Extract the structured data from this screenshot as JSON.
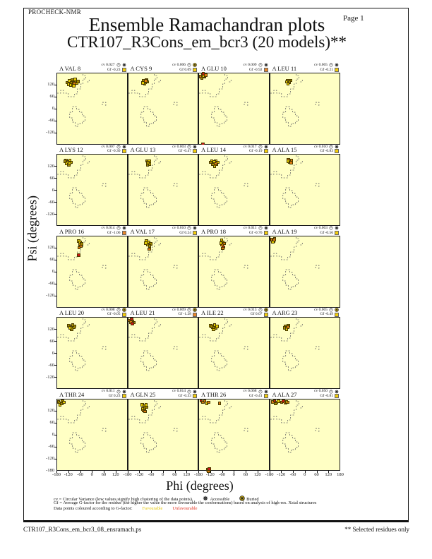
{
  "header": {
    "app_name": "PROCHECK-NMR",
    "page_label": "Page  1",
    "title_line1": "Ensemble Ramachandran plots",
    "title_line2": "CTR107_R3Cons_em_bcr3 (20 models)**"
  },
  "axes": {
    "x_label": "Phi (degrees)",
    "y_label": "Psi (degrees)",
    "x_ticks": [
      -180,
      -120,
      -60,
      0,
      60,
      120
    ],
    "x_end_tick": 180,
    "y_ticks": [
      120,
      60,
      0,
      -60,
      -120
    ],
    "y_bottom_tick": -180,
    "phi_range": [
      -180,
      180
    ],
    "psi_range": [
      -180,
      180
    ]
  },
  "legend": {
    "cv_text": "cv = Circular Variance (low values signify high clustering of the data points).",
    "accessible_label": "Accessible",
    "buried_label": "Buried",
    "gf_text": "Gf = Average G-factor for the residue (the higher the value the more favourable the conformations) based on analysis of high-res. Xstal structures",
    "points_text": "Data points coloured according to G-factor:",
    "favourable_label": "Favourable",
    "unfavourable_label": "Unfavourable"
  },
  "footer": {
    "left_text": "CTR107_R3Cons_em_bcr3_08_ensramach.ps",
    "right_text": "** Selected residues only"
  },
  "colors": {
    "plot_bg": "#FFFFC4",
    "favourable_text": "#E2C400",
    "unfavourable_text": "#E03020",
    "gf_square_yellow": "#F2CC0C",
    "gf_square_orange": "#E8862A",
    "buried_icon_fill": "#F2CC0C"
  },
  "chart_data": {
    "type": "scatter",
    "grid": {
      "rows": 5,
      "cols": 4
    },
    "point_colors": {
      "y": "#E3CC00",
      "d": "#A08A00",
      "o": "#DE7A10",
      "r": "#CC1414"
    },
    "plots": [
      {
        "label": "A VAL 8",
        "cv": "cv 0.027",
        "gf": "Gf -0.23",
        "burial": "accessible",
        "gf_level": "yellow",
        "points": [
          [
            -128,
            132,
            "d"
          ],
          [
            -118,
            142,
            "y"
          ],
          [
            -108,
            130,
            "d"
          ],
          [
            -99,
            143,
            "y"
          ],
          [
            -92,
            128,
            "o"
          ],
          [
            -86,
            139,
            "d"
          ],
          [
            -79,
            131,
            "y"
          ],
          [
            -112,
            120,
            "y"
          ],
          [
            -102,
            147,
            "d"
          ],
          [
            -122,
            124,
            "y"
          ],
          [
            -75,
            137,
            "d"
          ],
          [
            -96,
            117,
            "y"
          ],
          [
            -88,
            148,
            "y"
          ]
        ]
      },
      {
        "label": "A CYS 9",
        "cv": "cv 0.006",
        "gf": "Gf 0.09",
        "burial": "buried",
        "gf_level": "yellow",
        "points": [
          [
            -101,
            141,
            "d"
          ],
          [
            -92,
            133,
            "y"
          ],
          [
            -86,
            146,
            "d"
          ],
          [
            -96,
            126,
            "y"
          ],
          [
            -81,
            136,
            "d"
          ],
          [
            -104,
            131,
            "y"
          ],
          [
            -90,
            142,
            "o"
          ]
        ]
      },
      {
        "label": "A GLU 10",
        "cv": "cv 0.009",
        "gf": "Gf -0.92",
        "burial": "accessible",
        "gf_level": "orange",
        "points": [
          [
            -171,
            163,
            "o"
          ],
          [
            -161,
            170,
            "r"
          ],
          [
            -151,
            161,
            "o"
          ],
          [
            -166,
            154,
            "d"
          ],
          [
            -156,
            166,
            "y"
          ],
          [
            -146,
            170,
            "o"
          ],
          [
            -158,
            177,
            "r"
          ],
          [
            -160,
            -177,
            "r"
          ]
        ]
      },
      {
        "label": "A LEU 11",
        "cv": "cv 0.005",
        "gf": "Gf -0.21",
        "burial": "accessible",
        "gf_level": "yellow",
        "points": [
          [
            -91,
            141,
            "d"
          ],
          [
            -83,
            133,
            "y"
          ],
          [
            -76,
            143,
            "d"
          ],
          [
            -89,
            127,
            "y"
          ],
          [
            -81,
            136,
            "d"
          ],
          [
            -96,
            136,
            "y"
          ]
        ]
      },
      {
        "label": "A LYS 12",
        "cv": "cv 0.007",
        "gf": "Gf -0.30",
        "burial": "accessible",
        "gf_level": "yellow",
        "points": [
          [
            -136,
            151,
            "y"
          ],
          [
            -126,
            143,
            "d"
          ],
          [
            -116,
            151,
            "y"
          ],
          [
            -131,
            136,
            "y"
          ],
          [
            -121,
            129,
            "d"
          ],
          [
            -111,
            141,
            "y"
          ],
          [
            -141,
            146,
            "d"
          ],
          [
            -118,
            138,
            "y"
          ]
        ]
      },
      {
        "label": "A GLU 13",
        "cv": "cv 0.003",
        "gf": "Gf -0.47",
        "burial": "accessible",
        "gf_level": "yellow",
        "points": [
          [
            -83,
            149,
            "d"
          ],
          [
            -76,
            141,
            "d"
          ],
          [
            -71,
            133,
            "y"
          ],
          [
            -81,
            129,
            "d"
          ],
          [
            -73,
            146,
            "y"
          ],
          [
            -79,
            139,
            "d"
          ]
        ]
      },
      {
        "label": "A LEU 14",
        "cv": "cv 0.017",
        "gf": "Gf -0.19",
        "burial": "accessible",
        "gf_level": "yellow",
        "points": [
          [
            -116,
            146,
            "y"
          ],
          [
            -106,
            139,
            "d"
          ],
          [
            -96,
            149,
            "y"
          ],
          [
            -91,
            131,
            "d"
          ],
          [
            -101,
            123,
            "y"
          ],
          [
            -111,
            131,
            "d"
          ],
          [
            -86,
            141,
            "y"
          ],
          [
            -121,
            141,
            "d"
          ],
          [
            -96,
            136,
            "o"
          ],
          [
            -104,
            145,
            "y"
          ]
        ]
      },
      {
        "label": "A ALA 15",
        "cv": "cv 0.010",
        "gf": "Gf -0.83",
        "burial": "accessible",
        "gf_level": "yellow",
        "points": [
          [
            -86,
            153,
            "o"
          ],
          [
            -79,
            146,
            "d"
          ],
          [
            -71,
            151,
            "o"
          ],
          [
            -81,
            141,
            "d"
          ],
          [
            -73,
            139,
            "o"
          ],
          [
            -89,
            146,
            "y"
          ]
        ]
      },
      {
        "label": "A PRO 16",
        "cv": "cv 0.014",
        "gf": "Gf -1.06",
        "burial": "accessible",
        "gf_level": "orange",
        "points": [
          [
            -71,
            156,
            "y"
          ],
          [
            -63,
            149,
            "y"
          ],
          [
            -56,
            141,
            "d"
          ],
          [
            -66,
            136,
            "o"
          ],
          [
            -59,
            129,
            "o"
          ],
          [
            -69,
            123,
            "o"
          ],
          [
            -70,
            85,
            "r"
          ]
        ]
      },
      {
        "label": "A VAL 17",
        "cv": "cv 0.010",
        "gf": "Gf 0.24",
        "burial": "accessible",
        "gf_level": "yellow",
        "points": [
          [
            -86,
            156,
            "y"
          ],
          [
            -76,
            149,
            "y"
          ],
          [
            -66,
            141,
            "d"
          ],
          [
            -81,
            139,
            "y"
          ],
          [
            -71,
            131,
            "d"
          ],
          [
            -73,
            116,
            "o"
          ],
          [
            -91,
            146,
            "y"
          ]
        ]
      },
      {
        "label": "A PRO 18",
        "cv": "cv 0.011",
        "gf": "Gf -0.76",
        "burial": "accessible",
        "gf_level": "yellow",
        "points": [
          [
            -66,
            161,
            "y"
          ],
          [
            -59,
            151,
            "d"
          ],
          [
            -53,
            143,
            "o"
          ],
          [
            -63,
            136,
            "o"
          ],
          [
            -56,
            126,
            "r"
          ],
          [
            -61,
            119,
            "o"
          ],
          [
            -69,
            146,
            "y"
          ]
        ]
      },
      {
        "label": "A ALA 19",
        "cv": "cv 0.003",
        "gf": "Gf -0.56",
        "burial": "accessible",
        "gf_level": "yellow",
        "points": [
          [
            -171,
            164,
            "o"
          ],
          [
            -163,
            157,
            "d"
          ],
          [
            -156,
            167,
            "o"
          ],
          [
            -166,
            151,
            "y"
          ],
          [
            -159,
            161,
            "o"
          ]
        ]
      },
      {
        "label": "A LEU 20",
        "cv": "cv 0.008",
        "gf": "Gf -0.05",
        "burial": "buried",
        "gf_level": "yellow",
        "points": [
          [
            -121,
            141,
            "d"
          ],
          [
            -111,
            133,
            "y"
          ],
          [
            -101,
            143,
            "d"
          ],
          [
            -96,
            131,
            "y"
          ],
          [
            -106,
            123,
            "d"
          ],
          [
            -116,
            129,
            "y"
          ],
          [
            -91,
            139,
            "d"
          ]
        ]
      },
      {
        "label": "A LEU 21",
        "cv": "cv 0.009",
        "gf": "Gf -1.28",
        "burial": "buried",
        "gf_level": "orange",
        "points": [
          [
            -173,
            167,
            "o"
          ],
          [
            -163,
            172,
            "r"
          ],
          [
            -156,
            163,
            "o"
          ],
          [
            -149,
            156,
            "d"
          ],
          [
            -166,
            158,
            "o"
          ],
          [
            -158,
            151,
            "r"
          ]
        ]
      },
      {
        "label": "A ILE 22",
        "cv": "cv 0.013",
        "gf": "Gf 0.07",
        "burial": "buried",
        "gf_level": "yellow",
        "points": [
          [
            -121,
            141,
            "y"
          ],
          [
            -111,
            133,
            "d"
          ],
          [
            -101,
            143,
            "y"
          ],
          [
            -96,
            129,
            "d"
          ],
          [
            -106,
            121,
            "y"
          ],
          [
            -116,
            136,
            "d"
          ],
          [
            -89,
            136,
            "y"
          ]
        ]
      },
      {
        "label": "A ARG 23",
        "cv": "cv 0.005",
        "gf": "Gf -0.49",
        "burial": "buried",
        "gf_level": "yellow",
        "points": [
          [
            -101,
            139,
            "d"
          ],
          [
            -93,
            131,
            "o"
          ],
          [
            -86,
            141,
            "d"
          ],
          [
            -96,
            123,
            "y"
          ],
          [
            -89,
            133,
            "o"
          ],
          [
            -106,
            129,
            "d"
          ]
        ]
      },
      {
        "label": "A THR 24",
        "cv": "cv 0.011",
        "gf": "Gf 0.23",
        "burial": "accessible",
        "gf_level": "yellow",
        "points": [
          [
            -173,
            167,
            "d"
          ],
          [
            -163,
            161,
            "y"
          ],
          [
            -153,
            171,
            "d"
          ],
          [
            -166,
            153,
            "y"
          ],
          [
            -156,
            159,
            "d"
          ],
          [
            -146,
            166,
            "y"
          ]
        ]
      },
      {
        "label": "A GLN 25",
        "cv": "cv 0.014",
        "gf": "Gf -0.33",
        "burial": "accessible",
        "gf_level": "yellow",
        "points": [
          [
            -109,
            153,
            "y"
          ],
          [
            -99,
            146,
            "d"
          ],
          [
            -89,
            153,
            "y"
          ],
          [
            -96,
            136,
            "d"
          ],
          [
            -106,
            131,
            "y"
          ],
          [
            -86,
            141,
            "d"
          ],
          [
            -101,
            123,
            "o"
          ],
          [
            -93,
            119,
            "o"
          ]
        ]
      },
      {
        "label": "A THR 26",
        "cv": "cv 0.068",
        "gf": "Gf -0.41",
        "burial": "accessible",
        "gf_level": "yellow",
        "points": [
          [
            -169,
            173,
            "r"
          ],
          [
            -161,
            166,
            "o"
          ],
          [
            -151,
            173,
            "o"
          ],
          [
            -141,
            161,
            "y"
          ],
          [
            -131,
            166,
            "o"
          ],
          [
            -76,
            161,
            "o"
          ],
          [
            -136,
            -171,
            "o"
          ],
          [
            -131,
            -178,
            "o"
          ],
          [
            -128,
            -167,
            "r"
          ]
        ]
      },
      {
        "label": "A ALA 27",
        "cv": "cv 0.050",
        "gf": "Gf -0.81",
        "burial": "accessible",
        "gf_level": "yellow",
        "points": [
          [
            -166,
            168,
            "o"
          ],
          [
            -156,
            172,
            "r"
          ],
          [
            -146,
            166,
            "o"
          ],
          [
            -136,
            171,
            "y"
          ],
          [
            -121,
            166,
            "o"
          ],
          [
            -111,
            171,
            "r"
          ],
          [
            -101,
            163,
            "o"
          ],
          [
            -96,
            168,
            "y"
          ],
          [
            -89,
            166,
            "o"
          ],
          [
            -151,
            159,
            "d"
          ]
        ]
      }
    ]
  }
}
